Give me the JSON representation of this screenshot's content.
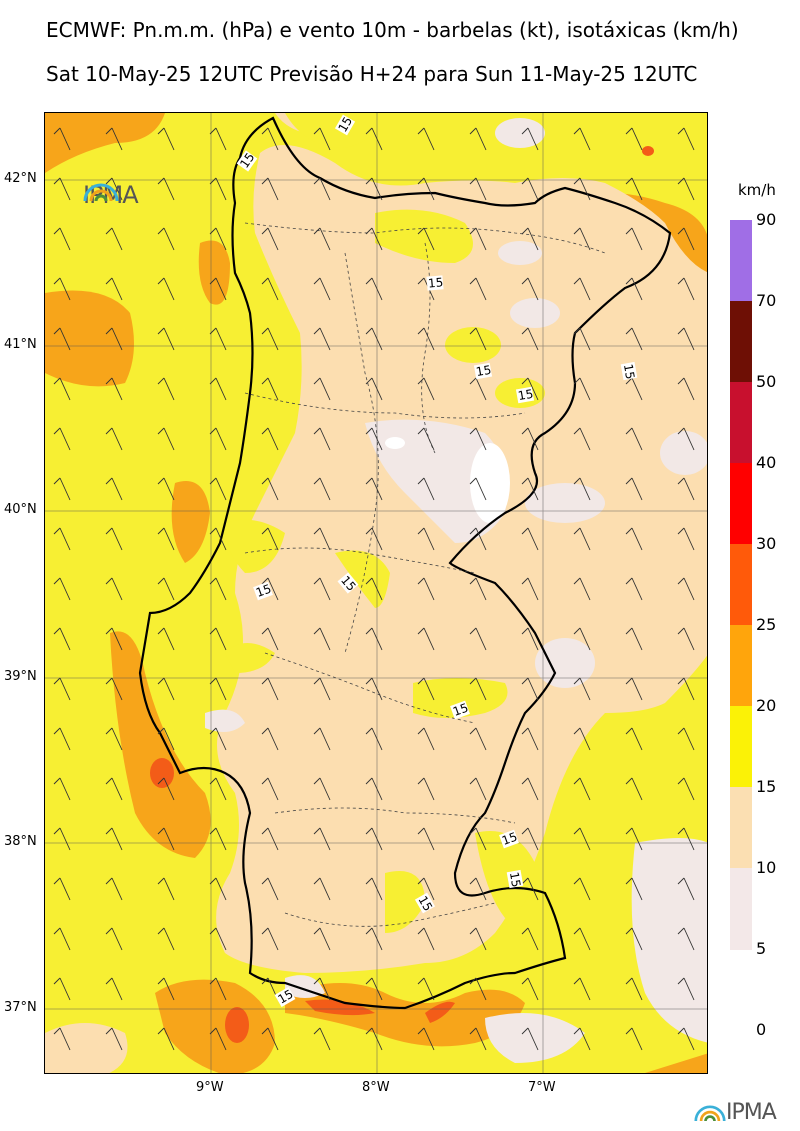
{
  "header": {
    "title_line1": "ECMWF: Pn.m.m. (hPa) e vento 10m - barbelas (kt), isotáxicas (km/h)",
    "title_line2": "Sat 10-May-25 12UTC Previsão H+24 para Sun 11-May-25 12UTC"
  },
  "axes": {
    "latitudes": [
      "42°N",
      "41°N",
      "40°N",
      "39°N",
      "38°N",
      "37°N"
    ],
    "longitudes": [
      "9°W",
      "8°W",
      "7°W"
    ]
  },
  "legend": {
    "unit": "km/h",
    "levels": [
      "90",
      "70",
      "50",
      "40",
      "30",
      "25",
      "20",
      "15",
      "10",
      "5",
      "0"
    ],
    "colors": [
      "#a06ee6",
      "#6e0f05",
      "#c8102e",
      "#ff0000",
      "#ff5a0a",
      "#ffa50c",
      "#fbf206",
      "#fbdfb2",
      "#f3e8e8"
    ]
  },
  "contour_labels": [
    "15",
    "15",
    "15",
    "15",
    "15",
    "15",
    "15",
    "15",
    "15",
    "15",
    "15",
    "15",
    "15"
  ],
  "logo": {
    "text": "IPMA"
  },
  "footer_logo": {
    "text": "IPMA"
  }
}
